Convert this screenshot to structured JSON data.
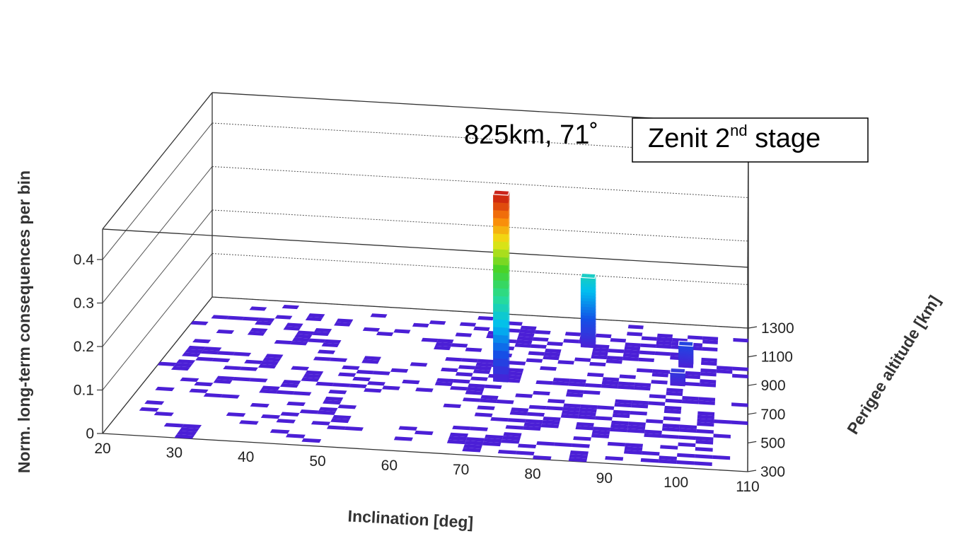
{
  "chart_data": {
    "type": "bar3d",
    "zlabel": "Norm. long-term consequences per bin",
    "xlabel": "Inclination [deg]",
    "ylabel": "Perigee altitude [km]",
    "x_ticks": [
      "20",
      "30",
      "40",
      "50",
      "60",
      "70",
      "80",
      "90",
      "100",
      "110"
    ],
    "y_ticks": [
      "300",
      "500",
      "700",
      "900",
      "1100",
      "1300"
    ],
    "z_ticks": [
      "0",
      "0.1",
      "0.2",
      "0.3",
      "0.4"
    ],
    "xlim": [
      20,
      110
    ],
    "ylim": [
      300,
      1300
    ],
    "zlim": [
      0,
      0.45
    ],
    "grid": true,
    "bin_size": {
      "inclination": 2.5,
      "altitude": 25
    },
    "annotations": {
      "peak_label": "825km, 71˚",
      "box_main": "Zenit 2",
      "box_sup": "nd",
      "box_rest": " stage"
    },
    "colors": {
      "low": "#4b1fd6",
      "high": "#cc1f10"
    },
    "tall_bars": [
      {
        "inclination": 71,
        "altitude": 825,
        "value": 0.43
      },
      {
        "inclination": 83,
        "altitude": 1100,
        "value": 0.16
      },
      {
        "inclination": 99,
        "altitude": 1000,
        "value": 0.05
      },
      {
        "inclination": 98,
        "altitude": 870,
        "value": 0.03
      }
    ]
  }
}
